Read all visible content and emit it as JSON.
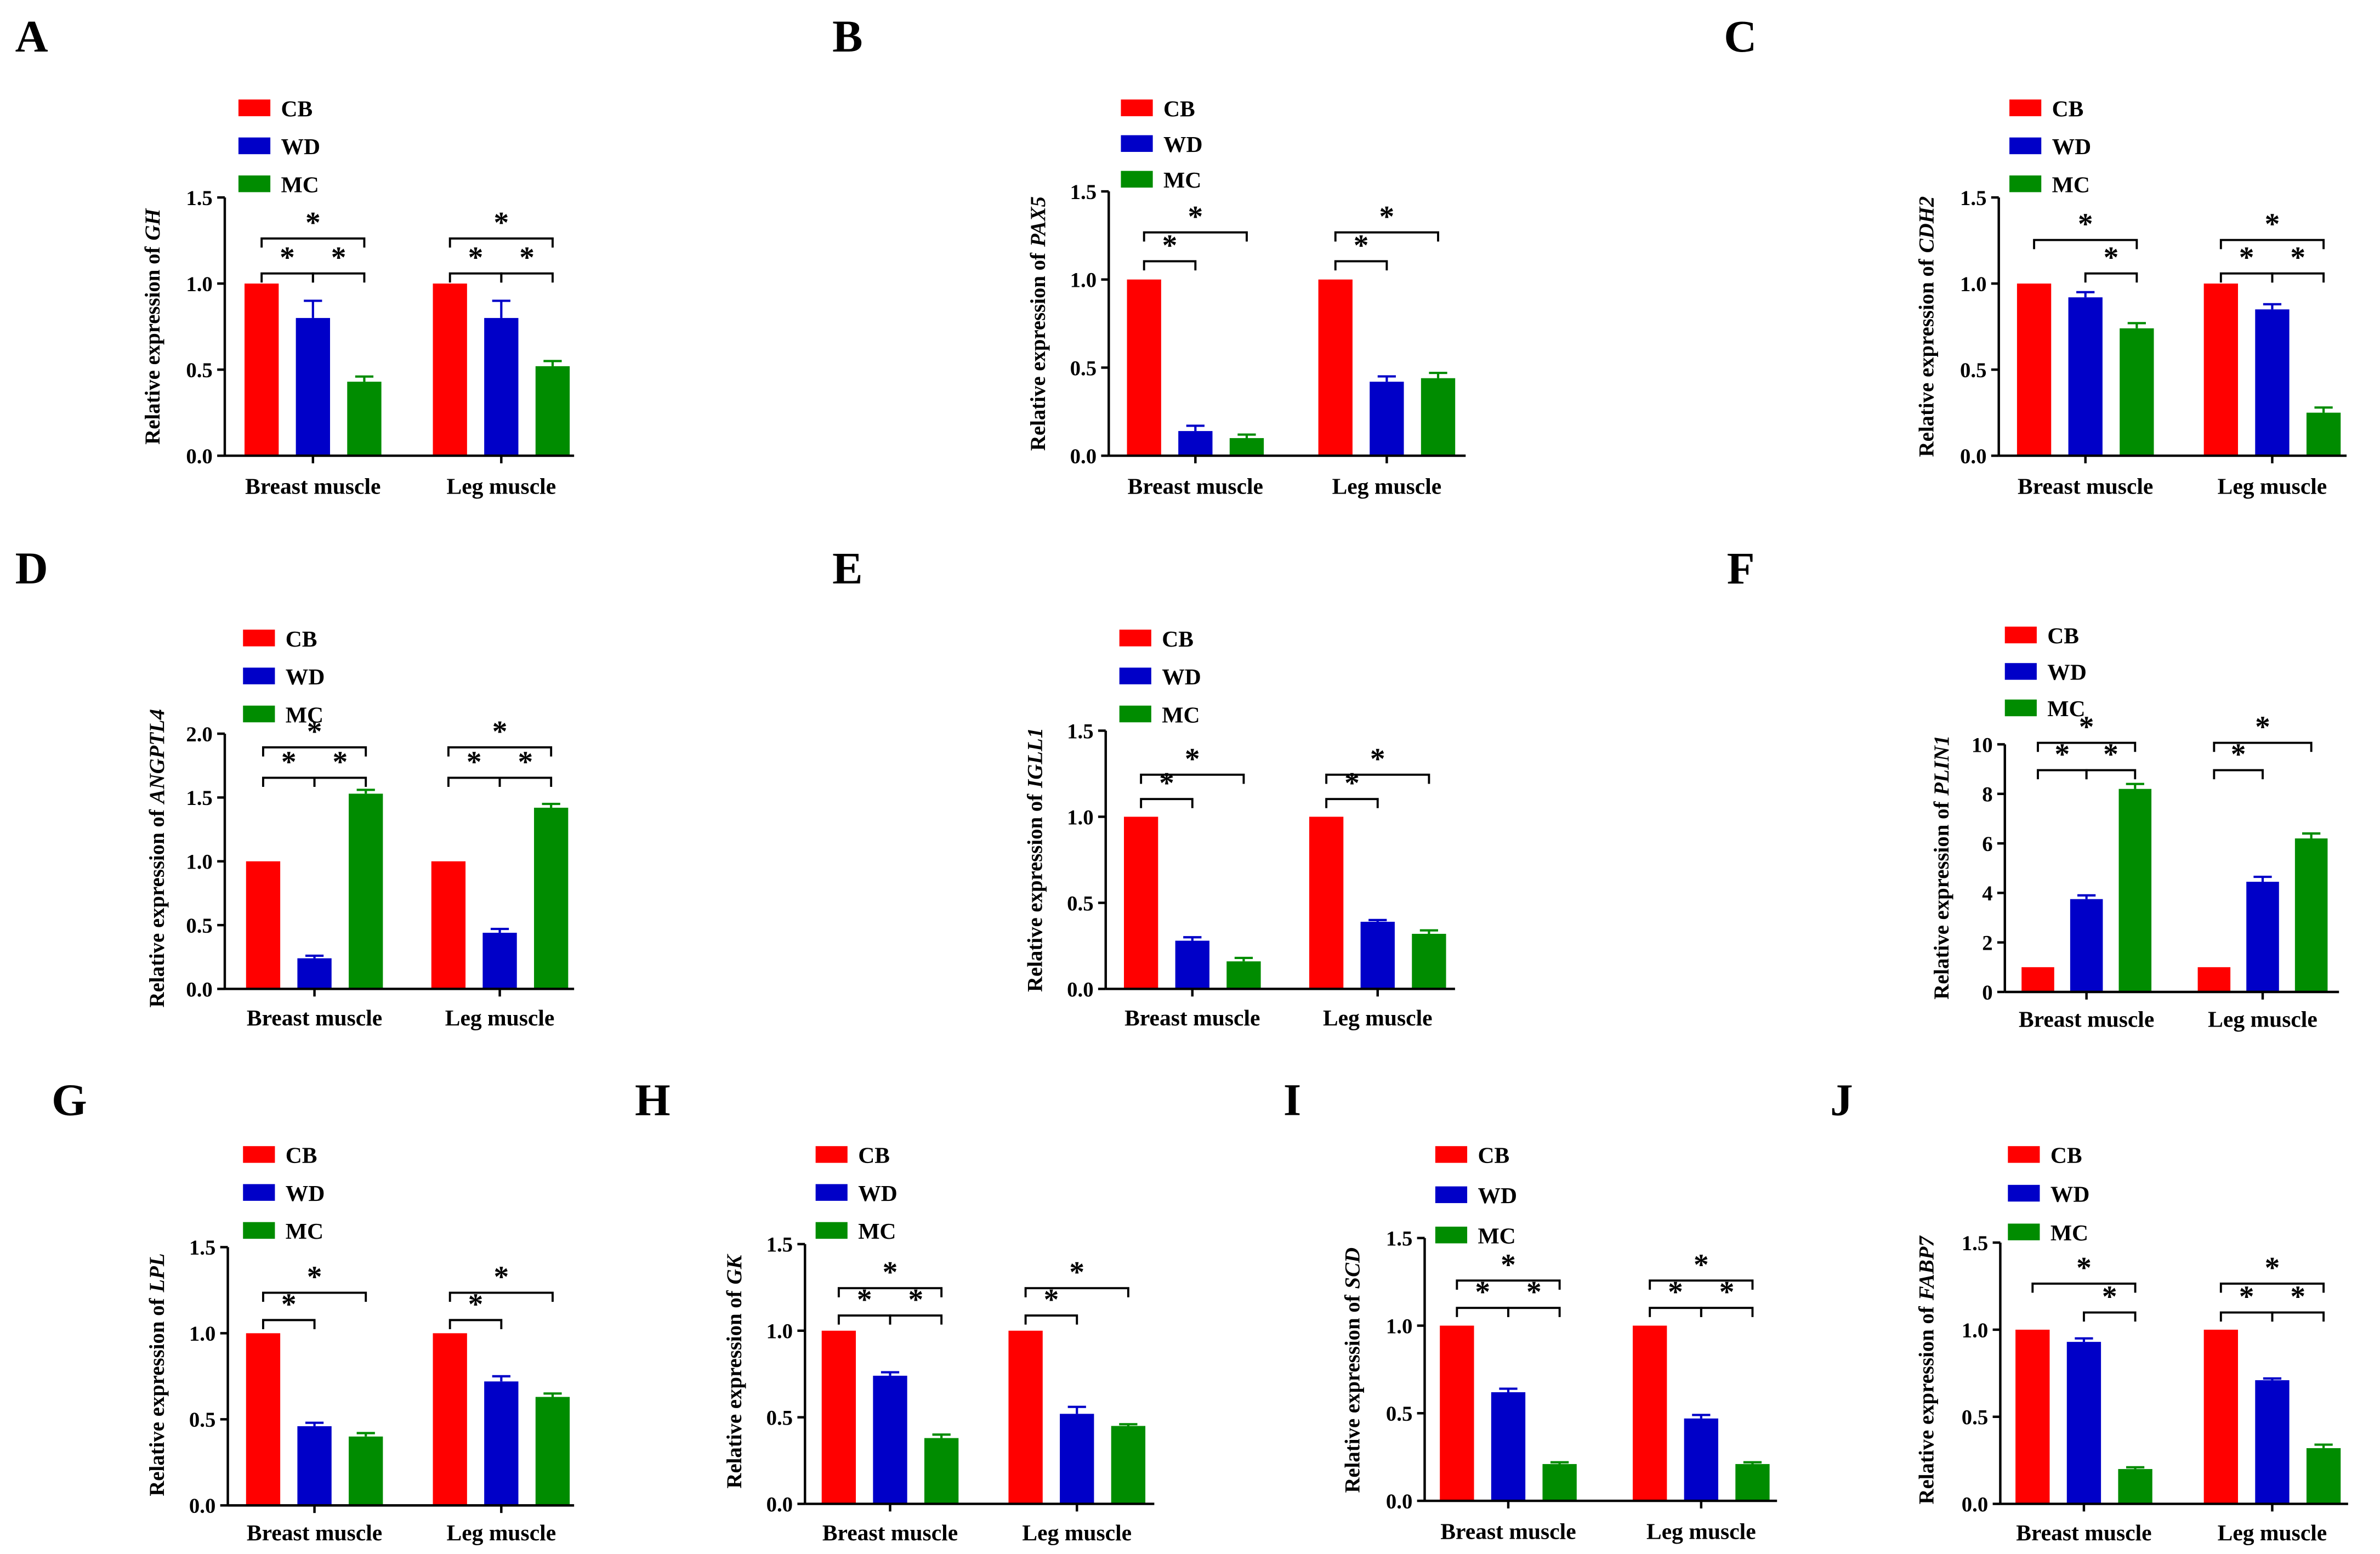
{
  "chart_data": [
    {
      "panel": "A",
      "type": "bar",
      "categories": [
        "Breast muscle",
        "Leg muscle"
      ],
      "series": [
        {
          "name": "CB",
          "color": "#ff0000",
          "values": [
            1.0,
            1.0
          ],
          "errors": [
            0,
            0
          ]
        },
        {
          "name": "WD",
          "color": "#0000c8",
          "values": [
            0.8,
            0.8
          ],
          "errors": [
            0.1,
            0.1
          ]
        },
        {
          "name": "MC",
          "color": "#008c00",
          "values": [
            0.43,
            0.52
          ],
          "errors": [
            0.03,
            0.03
          ]
        }
      ],
      "ylabel": "Relative expression of",
      "ylabel_gene": "GH",
      "ylim": [
        0,
        1.5
      ],
      "ytick_labels": [
        "0.0",
        "0.5",
        "1.0",
        "1.5"
      ],
      "significance": [
        {
          "cat": 0,
          "from": 0,
          "to": 1,
          "label": "*"
        },
        {
          "cat": 0,
          "from": 1,
          "to": 2,
          "label": "*"
        },
        {
          "cat": 0,
          "from": 0,
          "to": 2,
          "label": "*"
        },
        {
          "cat": 1,
          "from": 0,
          "to": 1,
          "label": "*"
        },
        {
          "cat": 1,
          "from": 1,
          "to": 2,
          "label": "*"
        },
        {
          "cat": 1,
          "from": 0,
          "to": 2,
          "label": "*"
        }
      ]
    },
    {
      "panel": "B",
      "type": "bar",
      "categories": [
        "Breast muscle",
        "Leg muscle"
      ],
      "series": [
        {
          "name": "CB",
          "color": "#ff0000",
          "values": [
            1.0,
            1.0
          ],
          "errors": [
            0,
            0
          ]
        },
        {
          "name": "WD",
          "color": "#0000c8",
          "values": [
            0.14,
            0.42
          ],
          "errors": [
            0.03,
            0.03
          ]
        },
        {
          "name": "MC",
          "color": "#008c00",
          "values": [
            0.1,
            0.44
          ],
          "errors": [
            0.02,
            0.03
          ]
        }
      ],
      "ylabel": "Relative expression of",
      "ylabel_gene": "PAX5",
      "ylim": [
        0,
        1.5
      ],
      "ytick_labels": [
        "0.0",
        "0.5",
        "1.0",
        "1.5"
      ],
      "significance": [
        {
          "cat": 0,
          "from": 0,
          "to": 1,
          "label": "*"
        },
        {
          "cat": 0,
          "from": 0,
          "to": 2,
          "label": "*"
        },
        {
          "cat": 1,
          "from": 0,
          "to": 1,
          "label": "*"
        },
        {
          "cat": 1,
          "from": 0,
          "to": 2,
          "label": "*"
        }
      ]
    },
    {
      "panel": "C",
      "type": "bar",
      "categories": [
        "Breast muscle",
        "Leg muscle"
      ],
      "series": [
        {
          "name": "CB",
          "color": "#ff0000",
          "values": [
            1.0,
            1.0
          ],
          "errors": [
            0,
            0
          ]
        },
        {
          "name": "WD",
          "color": "#0000c8",
          "values": [
            0.92,
            0.85
          ],
          "errors": [
            0.03,
            0.03
          ]
        },
        {
          "name": "MC",
          "color": "#008c00",
          "values": [
            0.74,
            0.25
          ],
          "errors": [
            0.03,
            0.03
          ]
        }
      ],
      "ylabel": "Relative expression of",
      "ylabel_gene": "CDH2",
      "ylim": [
        0,
        1.5
      ],
      "ytick_labels": [
        "0.0",
        "0.5",
        "1.0",
        "1.5"
      ],
      "significance": [
        {
          "cat": 0,
          "from": 1,
          "to": 2,
          "label": "*"
        },
        {
          "cat": 0,
          "from": 0,
          "to": 2,
          "label": "*"
        },
        {
          "cat": 1,
          "from": 0,
          "to": 1,
          "label": "*"
        },
        {
          "cat": 1,
          "from": 1,
          "to": 2,
          "label": "*"
        },
        {
          "cat": 1,
          "from": 0,
          "to": 2,
          "label": "*"
        }
      ]
    },
    {
      "panel": "D",
      "type": "bar",
      "categories": [
        "Breast muscle",
        "Leg muscle"
      ],
      "series": [
        {
          "name": "CB",
          "color": "#ff0000",
          "values": [
            1.0,
            1.0
          ],
          "errors": [
            0,
            0
          ]
        },
        {
          "name": "WD",
          "color": "#0000c8",
          "values": [
            0.24,
            0.44
          ],
          "errors": [
            0.02,
            0.03
          ]
        },
        {
          "name": "MC",
          "color": "#008c00",
          "values": [
            1.53,
            1.42
          ],
          "errors": [
            0.03,
            0.03
          ]
        }
      ],
      "ylabel": "Relative expression of",
      "ylabel_gene": "ANGPTL4",
      "ylim": [
        0,
        2.0
      ],
      "ytick_labels": [
        "0.0",
        "0.5",
        "1.0",
        "1.5",
        "2.0"
      ],
      "significance": [
        {
          "cat": 0,
          "from": 0,
          "to": 1,
          "label": "*"
        },
        {
          "cat": 0,
          "from": 1,
          "to": 2,
          "label": "*"
        },
        {
          "cat": 0,
          "from": 0,
          "to": 2,
          "label": "*"
        },
        {
          "cat": 1,
          "from": 0,
          "to": 1,
          "label": "*"
        },
        {
          "cat": 1,
          "from": 1,
          "to": 2,
          "label": "*"
        },
        {
          "cat": 1,
          "from": 0,
          "to": 2,
          "label": "*"
        }
      ]
    },
    {
      "panel": "E",
      "type": "bar",
      "categories": [
        "Breast muscle",
        "Leg muscle"
      ],
      "series": [
        {
          "name": "CB",
          "color": "#ff0000",
          "values": [
            1.0,
            1.0
          ],
          "errors": [
            0,
            0
          ]
        },
        {
          "name": "WD",
          "color": "#0000c8",
          "values": [
            0.28,
            0.39
          ],
          "errors": [
            0.02,
            0.01
          ]
        },
        {
          "name": "MC",
          "color": "#008c00",
          "values": [
            0.16,
            0.32
          ],
          "errors": [
            0.02,
            0.02
          ]
        }
      ],
      "ylabel": "Relative expression of",
      "ylabel_gene": "IGLL1",
      "ylim": [
        0,
        1.5
      ],
      "ytick_labels": [
        "0.0",
        "0.5",
        "1.0",
        "1.5"
      ],
      "significance": [
        {
          "cat": 0,
          "from": 0,
          "to": 1,
          "label": "*"
        },
        {
          "cat": 0,
          "from": 0,
          "to": 2,
          "label": "*"
        },
        {
          "cat": 1,
          "from": 0,
          "to": 1,
          "label": "*"
        },
        {
          "cat": 1,
          "from": 0,
          "to": 2,
          "label": "*"
        }
      ]
    },
    {
      "panel": "F",
      "type": "bar",
      "categories": [
        "Breast muscle",
        "Leg muscle"
      ],
      "series": [
        {
          "name": "CB",
          "color": "#ff0000",
          "values": [
            1.0,
            1.0
          ],
          "errors": [
            0,
            0
          ]
        },
        {
          "name": "WD",
          "color": "#0000c8",
          "values": [
            3.75,
            4.45
          ],
          "errors": [
            0.15,
            0.2
          ]
        },
        {
          "name": "MC",
          "color": "#008c00",
          "values": [
            8.2,
            6.2
          ],
          "errors": [
            0.2,
            0.2
          ]
        }
      ],
      "ylabel": "Relative expression of",
      "ylabel_gene": "PLIN1",
      "ylim": [
        0,
        10
      ],
      "ytick_labels": [
        "0",
        "2",
        "4",
        "6",
        "8",
        "10"
      ],
      "significance": [
        {
          "cat": 0,
          "from": 0,
          "to": 1,
          "label": "*"
        },
        {
          "cat": 0,
          "from": 1,
          "to": 2,
          "label": "*"
        },
        {
          "cat": 0,
          "from": 0,
          "to": 2,
          "label": "*"
        },
        {
          "cat": 1,
          "from": 0,
          "to": 1,
          "label": "*"
        },
        {
          "cat": 1,
          "from": 0,
          "to": 2,
          "label": "*"
        }
      ]
    },
    {
      "panel": "G",
      "type": "bar",
      "categories": [
        "Breast muscle",
        "Leg muscle"
      ],
      "series": [
        {
          "name": "CB",
          "color": "#ff0000",
          "values": [
            1.0,
            1.0
          ],
          "errors": [
            0,
            0
          ]
        },
        {
          "name": "WD",
          "color": "#0000c8",
          "values": [
            0.46,
            0.72
          ],
          "errors": [
            0.02,
            0.03
          ]
        },
        {
          "name": "MC",
          "color": "#008c00",
          "values": [
            0.4,
            0.63
          ],
          "errors": [
            0.02,
            0.02
          ]
        }
      ],
      "ylabel": "Relative expression of",
      "ylabel_gene": "LPL",
      "ylim": [
        0,
        1.5
      ],
      "ytick_labels": [
        "0.0",
        "0.5",
        "1.0",
        "1.5"
      ],
      "significance": [
        {
          "cat": 0,
          "from": 0,
          "to": 1,
          "label": "*"
        },
        {
          "cat": 0,
          "from": 0,
          "to": 2,
          "label": "*"
        },
        {
          "cat": 1,
          "from": 0,
          "to": 1,
          "label": "*"
        },
        {
          "cat": 1,
          "from": 0,
          "to": 2,
          "label": "*"
        }
      ]
    },
    {
      "panel": "H",
      "type": "bar",
      "categories": [
        "Breast muscle",
        "Leg muscle"
      ],
      "series": [
        {
          "name": "CB",
          "color": "#ff0000",
          "values": [
            1.0,
            1.0
          ],
          "errors": [
            0,
            0
          ]
        },
        {
          "name": "WD",
          "color": "#0000c8",
          "values": [
            0.74,
            0.52
          ],
          "errors": [
            0.02,
            0.04
          ]
        },
        {
          "name": "MC",
          "color": "#008c00",
          "values": [
            0.38,
            0.45
          ],
          "errors": [
            0.02,
            0.01
          ]
        }
      ],
      "ylabel": "Relative expression of",
      "ylabel_gene": "GK",
      "ylim": [
        0,
        1.5
      ],
      "ytick_labels": [
        "0.0",
        "0.5",
        "1.0",
        "1.5"
      ],
      "significance": [
        {
          "cat": 0,
          "from": 0,
          "to": 1,
          "label": "*"
        },
        {
          "cat": 0,
          "from": 1,
          "to": 2,
          "label": "*"
        },
        {
          "cat": 0,
          "from": 0,
          "to": 2,
          "label": "*"
        },
        {
          "cat": 1,
          "from": 0,
          "to": 1,
          "label": "*"
        },
        {
          "cat": 1,
          "from": 0,
          "to": 2,
          "label": "*"
        }
      ]
    },
    {
      "panel": "I",
      "type": "bar",
      "categories": [
        "Breast muscle",
        "Leg muscle"
      ],
      "series": [
        {
          "name": "CB",
          "color": "#ff0000",
          "values": [
            1.0,
            1.0
          ],
          "errors": [
            0,
            0
          ]
        },
        {
          "name": "WD",
          "color": "#0000c8",
          "values": [
            0.62,
            0.47
          ],
          "errors": [
            0.02,
            0.02
          ]
        },
        {
          "name": "MC",
          "color": "#008c00",
          "values": [
            0.21,
            0.21
          ],
          "errors": [
            0.01,
            0.01
          ]
        }
      ],
      "ylabel": "Relative expression of",
      "ylabel_gene": "SCD",
      "ylim": [
        0,
        1.5
      ],
      "ytick_labels": [
        "0.0",
        "0.5",
        "1.0",
        "1.5"
      ],
      "significance": [
        {
          "cat": 0,
          "from": 0,
          "to": 1,
          "label": "*"
        },
        {
          "cat": 0,
          "from": 1,
          "to": 2,
          "label": "*"
        },
        {
          "cat": 0,
          "from": 0,
          "to": 2,
          "label": "*"
        },
        {
          "cat": 1,
          "from": 0,
          "to": 1,
          "label": "*"
        },
        {
          "cat": 1,
          "from": 1,
          "to": 2,
          "label": "*"
        },
        {
          "cat": 1,
          "from": 0,
          "to": 2,
          "label": "*"
        }
      ]
    },
    {
      "panel": "J",
      "type": "bar",
      "categories": [
        "Breast muscle",
        "Leg muscle"
      ],
      "series": [
        {
          "name": "CB",
          "color": "#ff0000",
          "values": [
            1.0,
            1.0
          ],
          "errors": [
            0,
            0
          ]
        },
        {
          "name": "WD",
          "color": "#0000c8",
          "values": [
            0.93,
            0.71
          ],
          "errors": [
            0.02,
            0.01
          ]
        },
        {
          "name": "MC",
          "color": "#008c00",
          "values": [
            0.2,
            0.32
          ],
          "errors": [
            0.01,
            0.02
          ]
        }
      ],
      "ylabel": "Relative expression of",
      "ylabel_gene": "FABP7",
      "ylim": [
        0,
        1.5
      ],
      "ytick_labels": [
        "0.0",
        "0.5",
        "1.0",
        "1.5"
      ],
      "significance": [
        {
          "cat": 0,
          "from": 1,
          "to": 2,
          "label": "*"
        },
        {
          "cat": 0,
          "from": 0,
          "to": 2,
          "label": "*"
        },
        {
          "cat": 1,
          "from": 0,
          "to": 1,
          "label": "*"
        },
        {
          "cat": 1,
          "from": 1,
          "to": 2,
          "label": "*"
        },
        {
          "cat": 1,
          "from": 0,
          "to": 2,
          "label": "*"
        }
      ]
    }
  ]
}
